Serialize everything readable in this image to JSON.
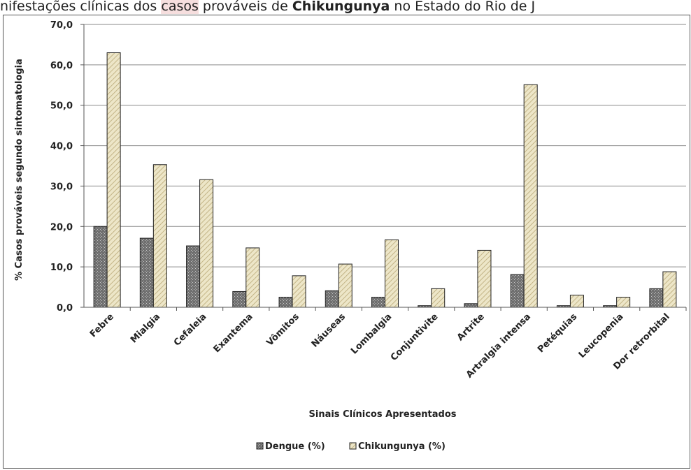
{
  "header_title": {
    "p1": "nifestações clínicas dos ",
    "p2": "casos",
    "p3": " prováveis de ",
    "p4": "Chikungunya",
    "p5": " no Estado do Rio de J"
  },
  "colors": {
    "dengue_fill": "#6f6f6f",
    "chik_fill": "#ede6c8",
    "gridline": "#8a8a8a",
    "title_highlight": "#f6dede"
  },
  "chart_data": {
    "type": "bar",
    "title": "",
    "xlabel": "Sinais Clínicos Apresentados",
    "ylabel": "% Casos prováveis segundo sintomatologia",
    "ylim": [
      0,
      70
    ],
    "yticks": [
      "0,0",
      "10,0",
      "20,0",
      "30,0",
      "40,0",
      "50,0",
      "60,0",
      "70,0"
    ],
    "grid": true,
    "legend_position": "bottom",
    "categories": [
      "Febre",
      "Mialgia",
      "Cefaleia",
      "Exantema",
      "Vômitos",
      "Náuseas",
      "Lombalgia",
      "Conjuntivite",
      "Artrite",
      "Artralgia intensa",
      "Petéquias",
      "Leucopenia",
      "Dor retrorbital"
    ],
    "series": [
      {
        "name": "Dengue (%)",
        "values": [
          20.0,
          17.1,
          15.2,
          3.9,
          2.5,
          4.1,
          2.5,
          0.4,
          0.9,
          8.1,
          0.4,
          0.4,
          4.6
        ]
      },
      {
        "name": "Chikungunya (%)",
        "values": [
          63.0,
          35.3,
          31.6,
          14.7,
          7.8,
          10.7,
          16.7,
          4.6,
          14.1,
          55.1,
          3.0,
          2.5,
          8.8
        ]
      }
    ]
  }
}
